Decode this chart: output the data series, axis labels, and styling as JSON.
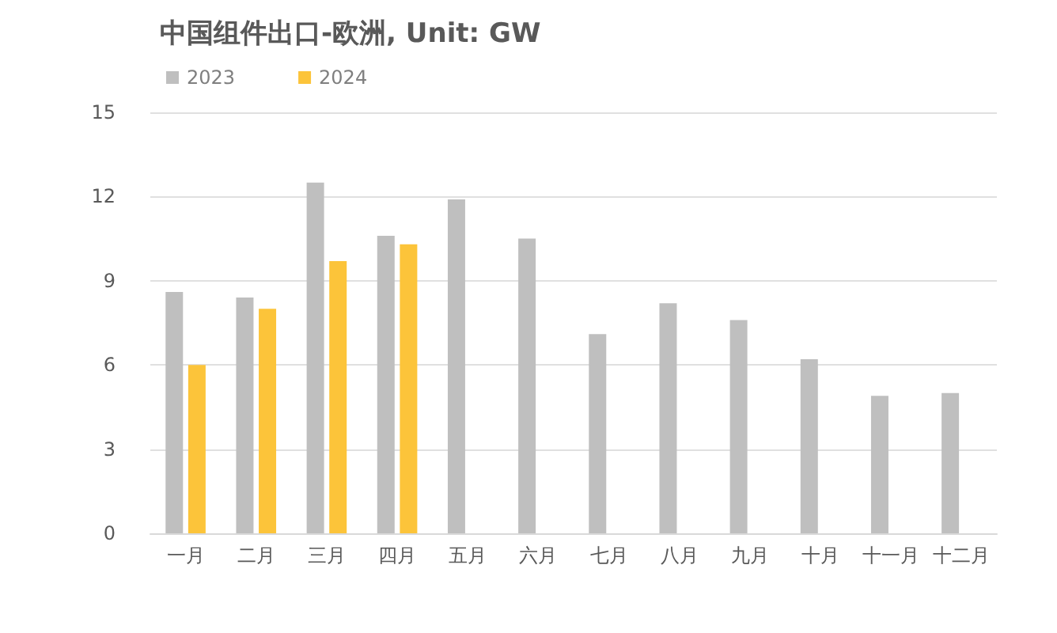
{
  "chart_data": {
    "type": "bar",
    "title": "中国组件出口-欧洲, Unit: GW",
    "categories": [
      "一月",
      "二月",
      "三月",
      "四月",
      "五月",
      "六月",
      "七月",
      "八月",
      "九月",
      "十月",
      "十一月",
      "十二月"
    ],
    "series": [
      {
        "name": "2023",
        "color": "#bfbfbf",
        "values": [
          8.6,
          8.4,
          12.5,
          10.6,
          11.9,
          10.5,
          7.1,
          8.2,
          7.6,
          6.2,
          4.9,
          5.0
        ]
      },
      {
        "name": "2024",
        "color": "#fcc43a",
        "values": [
          6.0,
          8.0,
          9.7,
          10.3,
          null,
          null,
          null,
          null,
          null,
          null,
          null,
          null
        ]
      }
    ],
    "ylim": [
      0,
      15
    ],
    "yticks": [
      0,
      3,
      6,
      9,
      12,
      15
    ],
    "grid": "y",
    "legend": "top left"
  }
}
